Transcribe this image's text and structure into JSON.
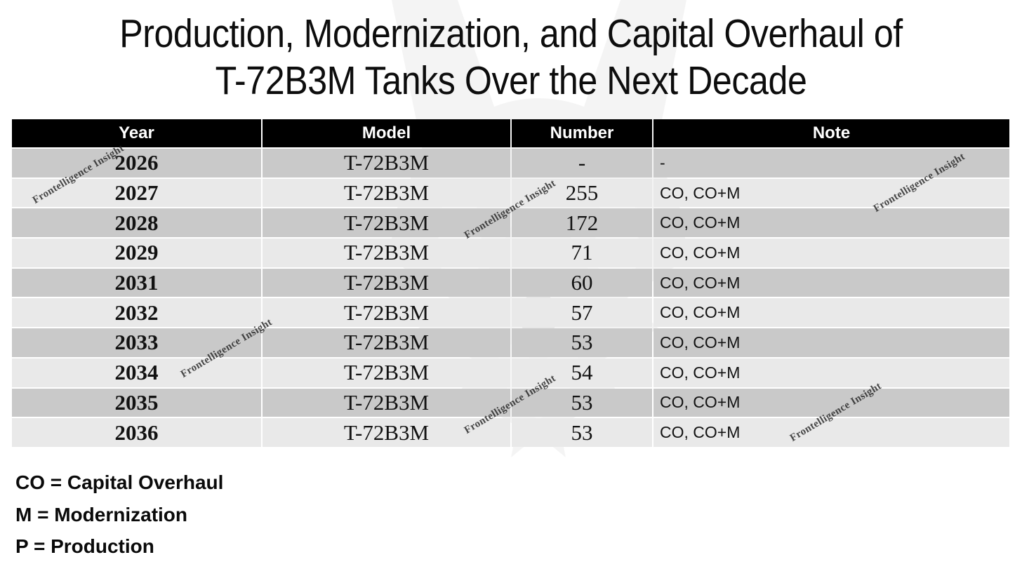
{
  "title": {
    "line1": "Production, Modernization, and Capital Overhaul of",
    "line2": "T-72B3M Tanks Over the Next Decade"
  },
  "table": {
    "columns": [
      "Year",
      "Model",
      "Number",
      "Note"
    ],
    "rows": [
      {
        "year": "2026",
        "model": "T-72B3M",
        "number": "-",
        "note": "-"
      },
      {
        "year": "2027",
        "model": "T-72B3M",
        "number": "255",
        "note": "CO, CO+M"
      },
      {
        "year": "2028",
        "model": "T-72B3M",
        "number": "172",
        "note": "CO, CO+M"
      },
      {
        "year": "2029",
        "model": "T-72B3M",
        "number": "71",
        "note": "CO, CO+M"
      },
      {
        "year": "2031",
        "model": "T-72B3M",
        "number": "60",
        "note": "CO, CO+M"
      },
      {
        "year": "2032",
        "model": "T-72B3M",
        "number": "57",
        "note": "CO, CO+M"
      },
      {
        "year": "2033",
        "model": "T-72B3M",
        "number": "53",
        "note": "CO, CO+M"
      },
      {
        "year": "2034",
        "model": "T-72B3M",
        "number": "54",
        "note": "CO, CO+M"
      },
      {
        "year": "2035",
        "model": "T-72B3M",
        "number": "53",
        "note": "CO, CO+M"
      },
      {
        "year": "2036",
        "model": "T-72B3M",
        "number": "53",
        "note": "CO, CO+M"
      }
    ]
  },
  "legend": {
    "lines": [
      "CO = Capital Overhaul",
      "M = Modernization",
      "P = Production"
    ]
  },
  "watermark": {
    "text": "Frontelligence Insight",
    "logo": "owl-emblem"
  },
  "colors": {
    "page_bg": "#ffffff",
    "header_bg": "#000000",
    "header_text": "#ffffff",
    "row_dark": "#c9c9c9",
    "row_light": "#e9e9e9",
    "watermark_text": "#232323"
  },
  "chart_data": {
    "type": "table",
    "title": "Production, Modernization, and Capital Overhaul of T-72B3M Tanks Over the Next Decade",
    "columns": [
      "Year",
      "Model",
      "Number",
      "Note"
    ],
    "rows": [
      [
        "2026",
        "T-72B3M",
        "-",
        "-"
      ],
      [
        "2027",
        "T-72B3M",
        "255",
        "CO, CO+M"
      ],
      [
        "2028",
        "T-72B3M",
        "172",
        "CO, CO+M"
      ],
      [
        "2029",
        "T-72B3M",
        "71",
        "CO, CO+M"
      ],
      [
        "2031",
        "T-72B3M",
        "60",
        "CO, CO+M"
      ],
      [
        "2032",
        "T-72B3M",
        "57",
        "CO, CO+M"
      ],
      [
        "2033",
        "T-72B3M",
        "53",
        "CO, CO+M"
      ],
      [
        "2034",
        "T-72B3M",
        "54",
        "CO, CO+M"
      ],
      [
        "2035",
        "T-72B3M",
        "53",
        "CO, CO+M"
      ],
      [
        "2036",
        "T-72B3M",
        "53",
        "CO, CO+M"
      ]
    ],
    "notes_legend": [
      "CO = Capital Overhaul",
      "M = Modernization",
      "P = Production"
    ],
    "layout_hints": {
      "header_style": "black-bar",
      "row_striping": "dark-light-alternating",
      "missing_year": "2030"
    }
  }
}
